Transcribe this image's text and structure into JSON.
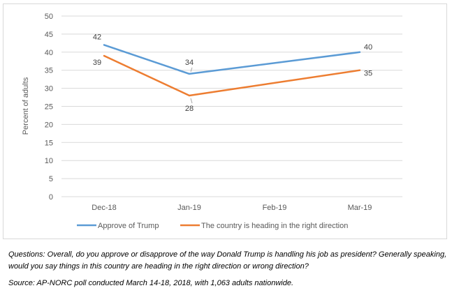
{
  "chart_data": {
    "type": "line",
    "title": "",
    "xlabel": "",
    "ylabel": "Percent of adults",
    "categories": [
      "Dec-18",
      "Jan-19",
      "Feb-19",
      "Mar-19"
    ],
    "ylim": [
      0,
      50
    ],
    "yticks": [
      "0",
      "5",
      "10",
      "15",
      "20",
      "25",
      "30",
      "35",
      "40",
      "45",
      "50"
    ],
    "grid": true,
    "legend_position": "bottom",
    "series": [
      {
        "name": "Approve of Trump",
        "color": "#5b9bd5",
        "values": [
          42,
          34,
          null,
          40
        ],
        "labels": [
          "42",
          "34",
          "",
          "40"
        ]
      },
      {
        "name": "The country is heading in the right direction",
        "color": "#ed7d31",
        "values": [
          39,
          28,
          null,
          35
        ],
        "labels": [
          "39",
          "28",
          "",
          "35"
        ]
      }
    ]
  },
  "notes": {
    "questions": "Questions: Overall, do you approve or disapprove of the way Donald Trump is handling his job as president? Generally speaking, would you say things in this country are heading in the right direction or wrong direction?",
    "source": "Source: AP-NORC poll conducted March 14-18, 2018, with 1,063 adults nationwide."
  }
}
